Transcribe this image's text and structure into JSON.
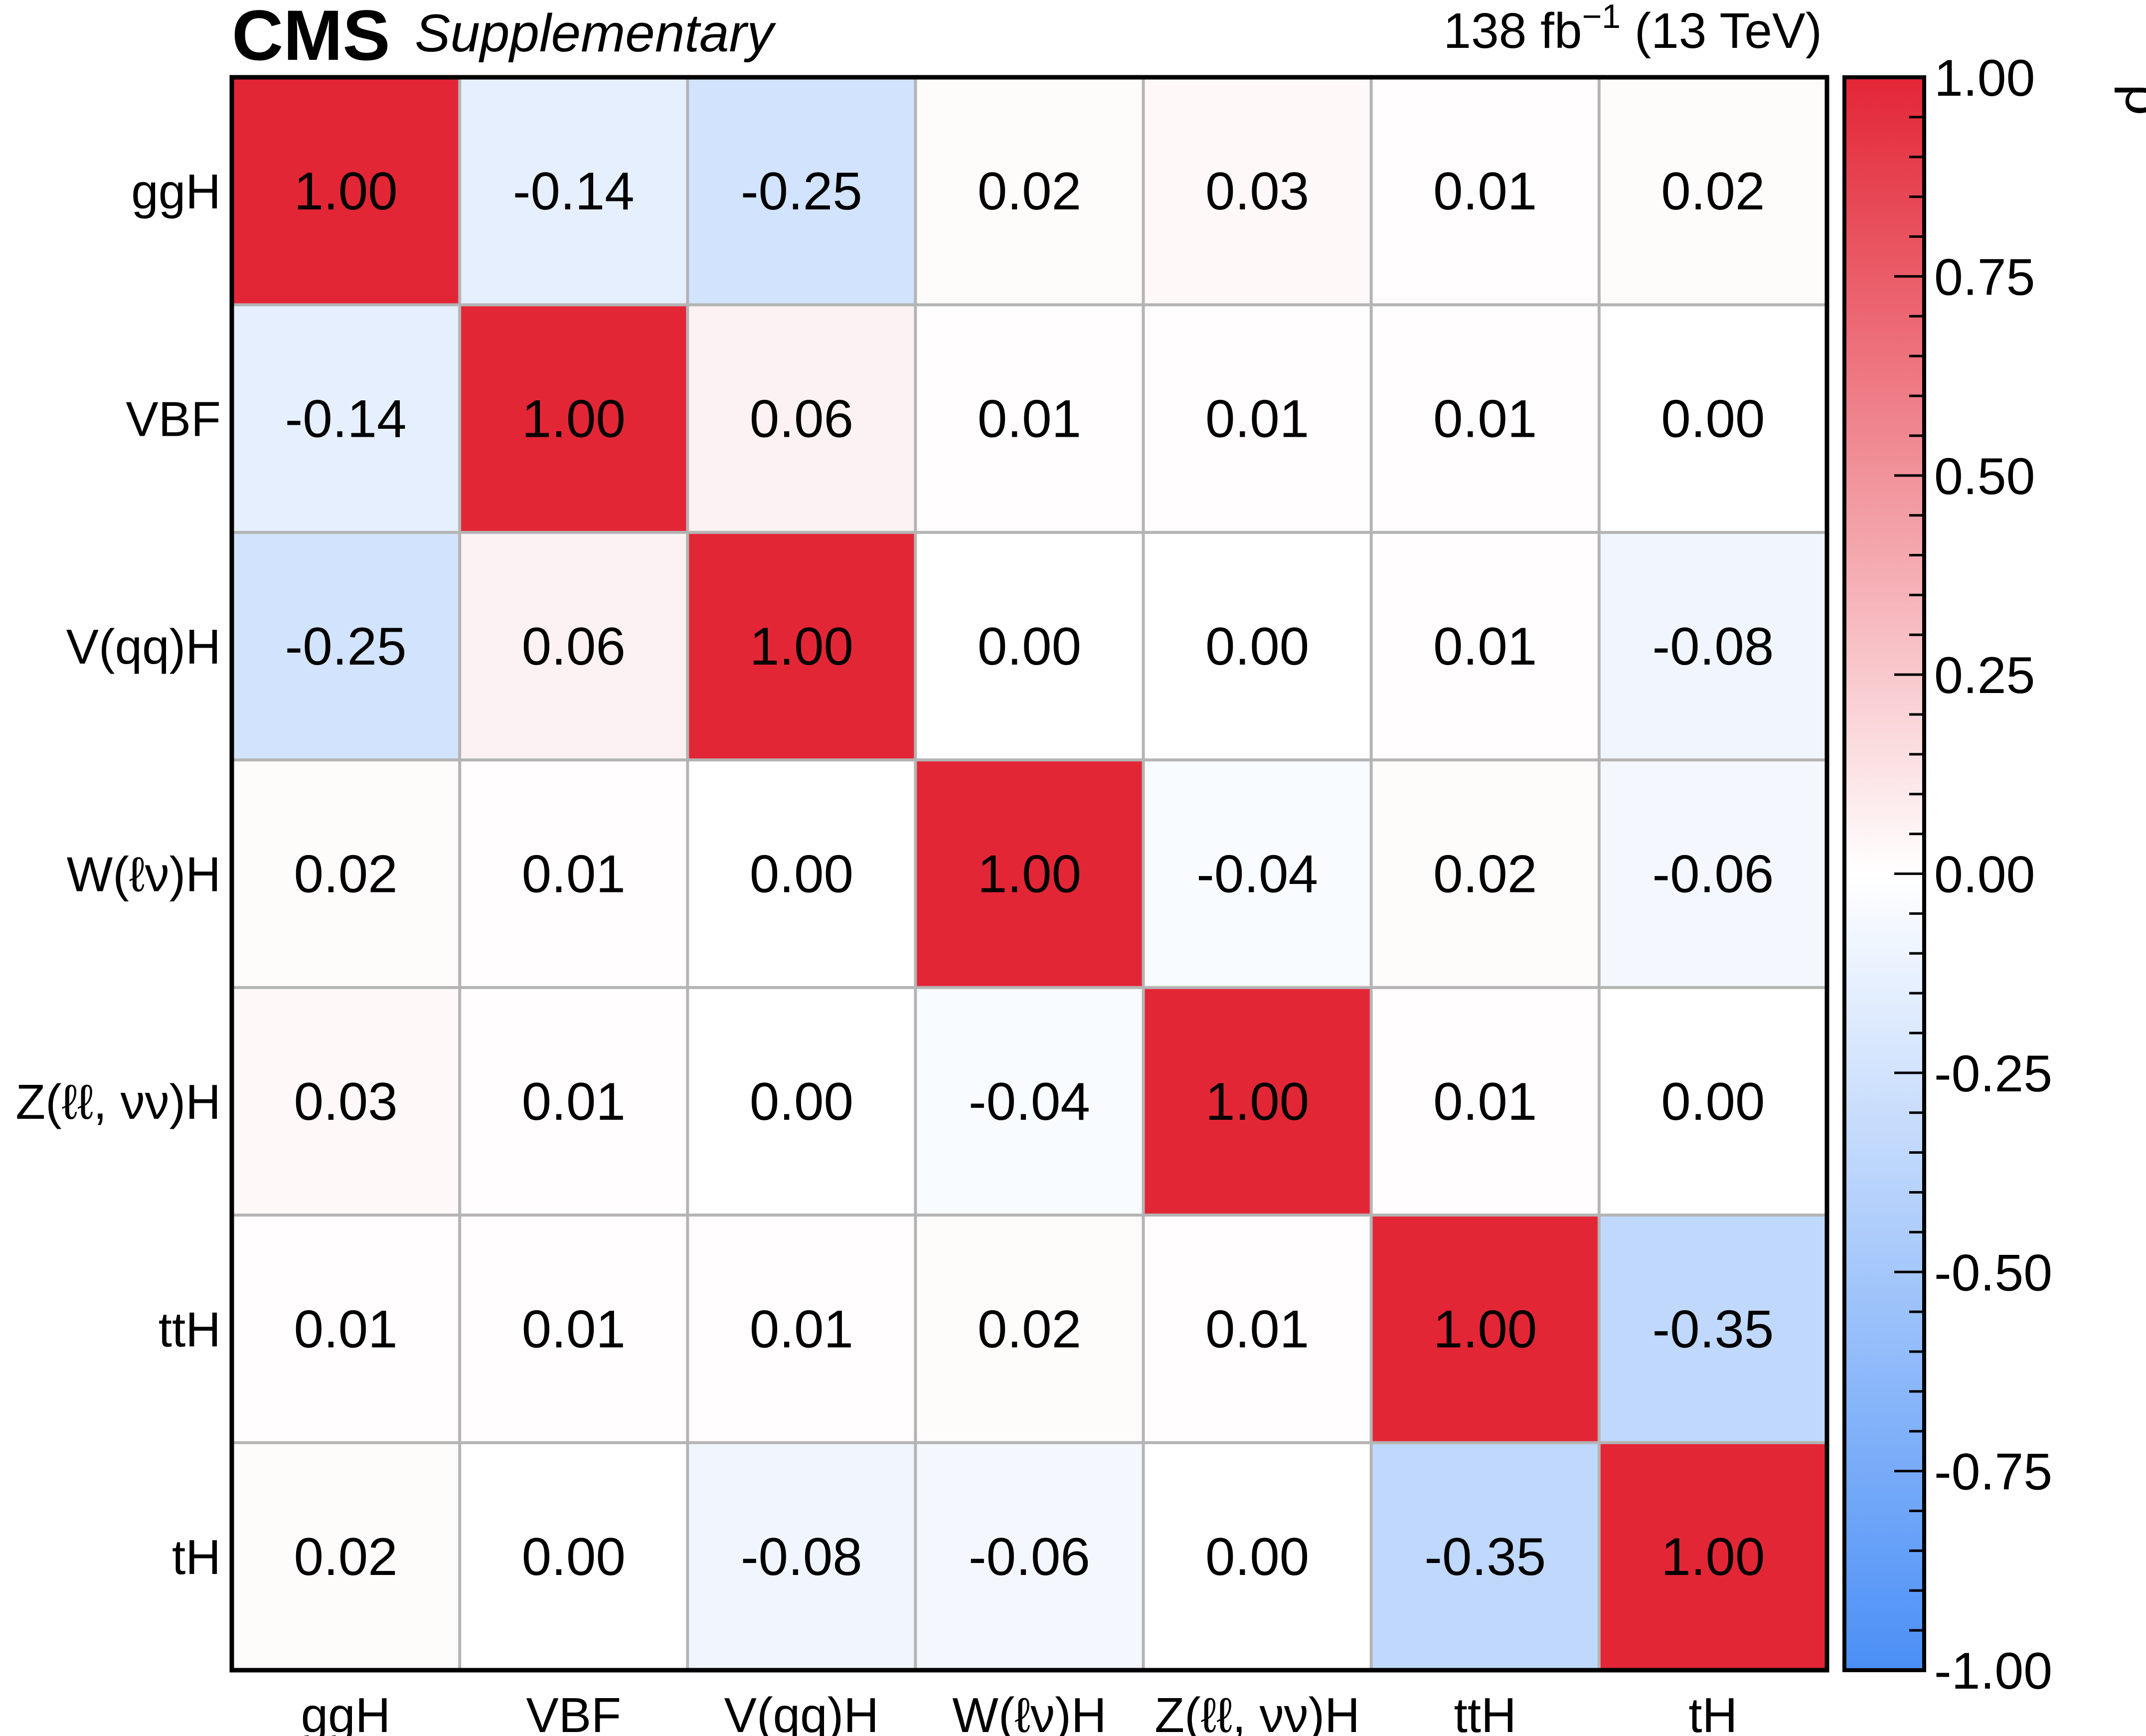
{
  "header": {
    "experiment": "CMS",
    "status": "Supplementary",
    "lumi_value": "138 fb",
    "lumi_exponent": "−1",
    "energy": " (13 TeV)"
  },
  "chart_data": {
    "type": "heatmap",
    "title": "",
    "x_categories": [
      "ggH",
      "VBF",
      "V(qq)H",
      "W(ℓν)H",
      "Z(ℓℓ, νν)H",
      "ttH",
      "tH"
    ],
    "y_categories": [
      "ggH",
      "VBF",
      "V(qq)H",
      "W(ℓν)H",
      "Z(ℓℓ, νν)H",
      "ttH",
      "tH"
    ],
    "values": [
      [
        1.0,
        -0.14,
        -0.25,
        0.02,
        0.03,
        0.01,
        0.02
      ],
      [
        -0.14,
        1.0,
        0.06,
        0.01,
        0.01,
        0.01,
        0.0
      ],
      [
        -0.25,
        0.06,
        1.0,
        0.0,
        0.0,
        0.01,
        -0.08
      ],
      [
        0.02,
        0.01,
        0.0,
        1.0,
        -0.04,
        0.02,
        -0.06
      ],
      [
        0.03,
        0.01,
        0.0,
        -0.04,
        1.0,
        0.01,
        0.0
      ],
      [
        0.01,
        0.01,
        0.01,
        0.02,
        0.01,
        1.0,
        -0.35
      ],
      [
        0.02,
        0.0,
        -0.08,
        -0.06,
        0.0,
        -0.35,
        1.0
      ]
    ],
    "value_labels": [
      [
        "1.00",
        "-0.14",
        "-0.25",
        "0.02",
        "0.03",
        "0.01",
        "0.02"
      ],
      [
        "-0.14",
        "1.00",
        "0.06",
        "0.01",
        "0.01",
        "0.01",
        "0.00"
      ],
      [
        "-0.25",
        "0.06",
        "1.00",
        "0.00",
        "0.00",
        "0.01",
        "-0.08"
      ],
      [
        "0.02",
        "0.01",
        "0.00",
        "1.00",
        "-0.04",
        "0.02",
        "-0.06"
      ],
      [
        "0.03",
        "0.01",
        "0.00",
        "-0.04",
        "1.00",
        "0.01",
        "0.00"
      ],
      [
        "0.01",
        "0.01",
        "0.01",
        "0.02",
        "0.01",
        "1.00",
        "-0.35"
      ],
      [
        "0.02",
        "0.00",
        "-0.08",
        "-0.06",
        "0.00",
        "-0.35",
        "1.00"
      ]
    ],
    "color_scale": {
      "label": "ρ",
      "range": [
        -1.0,
        1.0
      ],
      "tick_values": [
        1.0,
        0.75,
        0.5,
        0.25,
        0.0,
        -0.25,
        -0.5,
        -0.75,
        -1.0
      ],
      "tick_labels": [
        "1.00",
        "0.75",
        "0.50",
        "0.25",
        "0.00",
        "-0.25",
        "-0.50",
        "-0.75",
        "-1.00"
      ],
      "minor_tick_step": 0.05,
      "color_min": "#4a8ff6",
      "color_mid": "#ffffff",
      "color_max": "#e32636"
    },
    "grid": true
  }
}
